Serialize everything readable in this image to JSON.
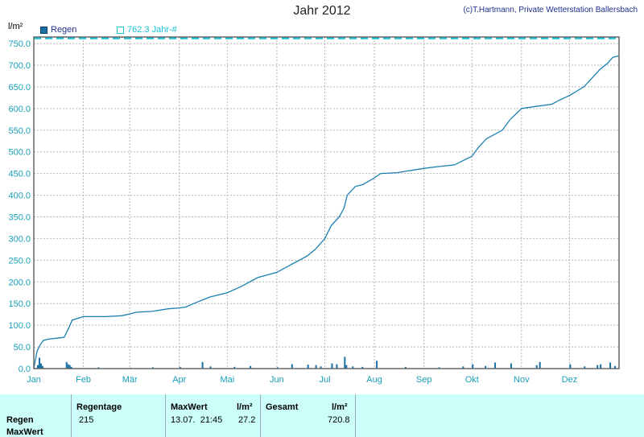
{
  "header": {
    "title": "Jahr 2012",
    "credit": "(c)T.Hartmann, Private Wetterstation Ballersbach",
    "unit": "l/m²"
  },
  "legend": {
    "regen_label": "Regen",
    "avg_label": "762.3 Jahr-#"
  },
  "colors": {
    "line": "#1a7fb0",
    "bars": "#1a6fa3",
    "average": "#19c3d6",
    "grid": "#b5b5b5",
    "axis_text": "#19a0b8",
    "panel_bg": "#ccfffa"
  },
  "chart_data": {
    "type": "line",
    "title": "Jahr 2012",
    "ylabel": "l/m²",
    "ylim": [
      0,
      765
    ],
    "yticks": [
      "0.0",
      "50.0",
      "100.0",
      "150.0",
      "200.0",
      "250.0",
      "300.0",
      "350.0",
      "400.0",
      "450.0",
      "500.0",
      "550.0",
      "600.0",
      "650.0",
      "700.0",
      "750.0"
    ],
    "months": [
      "Jan",
      "Feb",
      "Mär",
      "Apr",
      "Mai",
      "Jun",
      "Jul",
      "Aug",
      "Sep",
      "Okt",
      "Nov",
      "Dez"
    ],
    "average": 762.3,
    "series": [
      {
        "name": "Regen",
        "kind": "cumulative",
        "x": [
          "01.01",
          "03.01",
          "05.01",
          "07.01",
          "10.01",
          "15.01",
          "20.01",
          "23.01",
          "25.01",
          "01.02",
          "15.02",
          "25.02",
          "01.03",
          "05.03",
          "15.03",
          "25.03",
          "01.04",
          "05.04",
          "10.04",
          "20.04",
          "01.05",
          "10.05",
          "20.05",
          "01.06",
          "10.06",
          "20.06",
          "25.06",
          "01.07",
          "05.07",
          "10.07",
          "13.07",
          "15.07",
          "20.07",
          "25.07",
          "01.08",
          "05.08",
          "15.08",
          "01.09",
          "10.09",
          "20.09",
          "01.10",
          "05.10",
          "10.10",
          "20.10",
          "25.10",
          "01.11",
          "10.11",
          "20.11",
          "25.11",
          "01.12",
          "10.12",
          "20.12",
          "25.12",
          "28.12",
          "31.12"
        ],
        "values": [
          0,
          40,
          55,
          65,
          68,
          70,
          72,
          95,
          112,
          120,
          120,
          122,
          126,
          130,
          132,
          138,
          140,
          142,
          150,
          165,
          175,
          190,
          210,
          222,
          240,
          260,
          275,
          300,
          330,
          350,
          370,
          400,
          420,
          425,
          440,
          450,
          452,
          462,
          466,
          470,
          490,
          510,
          530,
          550,
          575,
          600,
          605,
          610,
          620,
          630,
          650,
          690,
          705,
          718,
          720.8
        ]
      },
      {
        "name": "Regen",
        "kind": "daily",
        "x": [
          "03.01",
          "04.01",
          "05.01",
          "06.01",
          "21.01",
          "22.01",
          "23.01",
          "24.01",
          "10.02",
          "01.03",
          "15.03",
          "01.04",
          "15.04",
          "20.04",
          "05.05",
          "15.05",
          "01.06",
          "10.06",
          "20.06",
          "25.06",
          "28.06",
          "05.07",
          "08.07",
          "13.07",
          "14.07",
          "18.07",
          "24.07",
          "02.08",
          "20.08",
          "10.09",
          "25.09",
          "01.10",
          "09.10",
          "15.10",
          "25.10",
          "10.11",
          "12.11",
          "01.12",
          "10.12",
          "18.12",
          "20.12",
          "26.12",
          "29.12"
        ],
        "values": [
          8,
          25,
          12,
          6,
          15,
          10,
          8,
          4,
          3,
          2,
          3,
          4,
          15,
          5,
          4,
          6,
          3,
          10,
          9,
          8,
          5,
          12,
          10,
          27.2,
          8,
          5,
          4,
          18,
          4,
          3,
          5,
          10,
          6,
          14,
          12,
          8,
          15,
          10,
          5,
          8,
          10,
          14,
          6
        ]
      }
    ]
  },
  "summary": {
    "headers": {
      "regentage": "Regentage",
      "maxwert": "MaxWert",
      "unit1": "l/m²",
      "gesamt": "Gesamt",
      "unit2": "l/m²"
    },
    "rows": {
      "regen": "Regen",
      "maxwert": "MaxWert"
    },
    "values": {
      "regentage": "215",
      "max_datetime": "13.07.  21:45",
      "max_value": "27.2",
      "gesamt": "720.8"
    }
  }
}
